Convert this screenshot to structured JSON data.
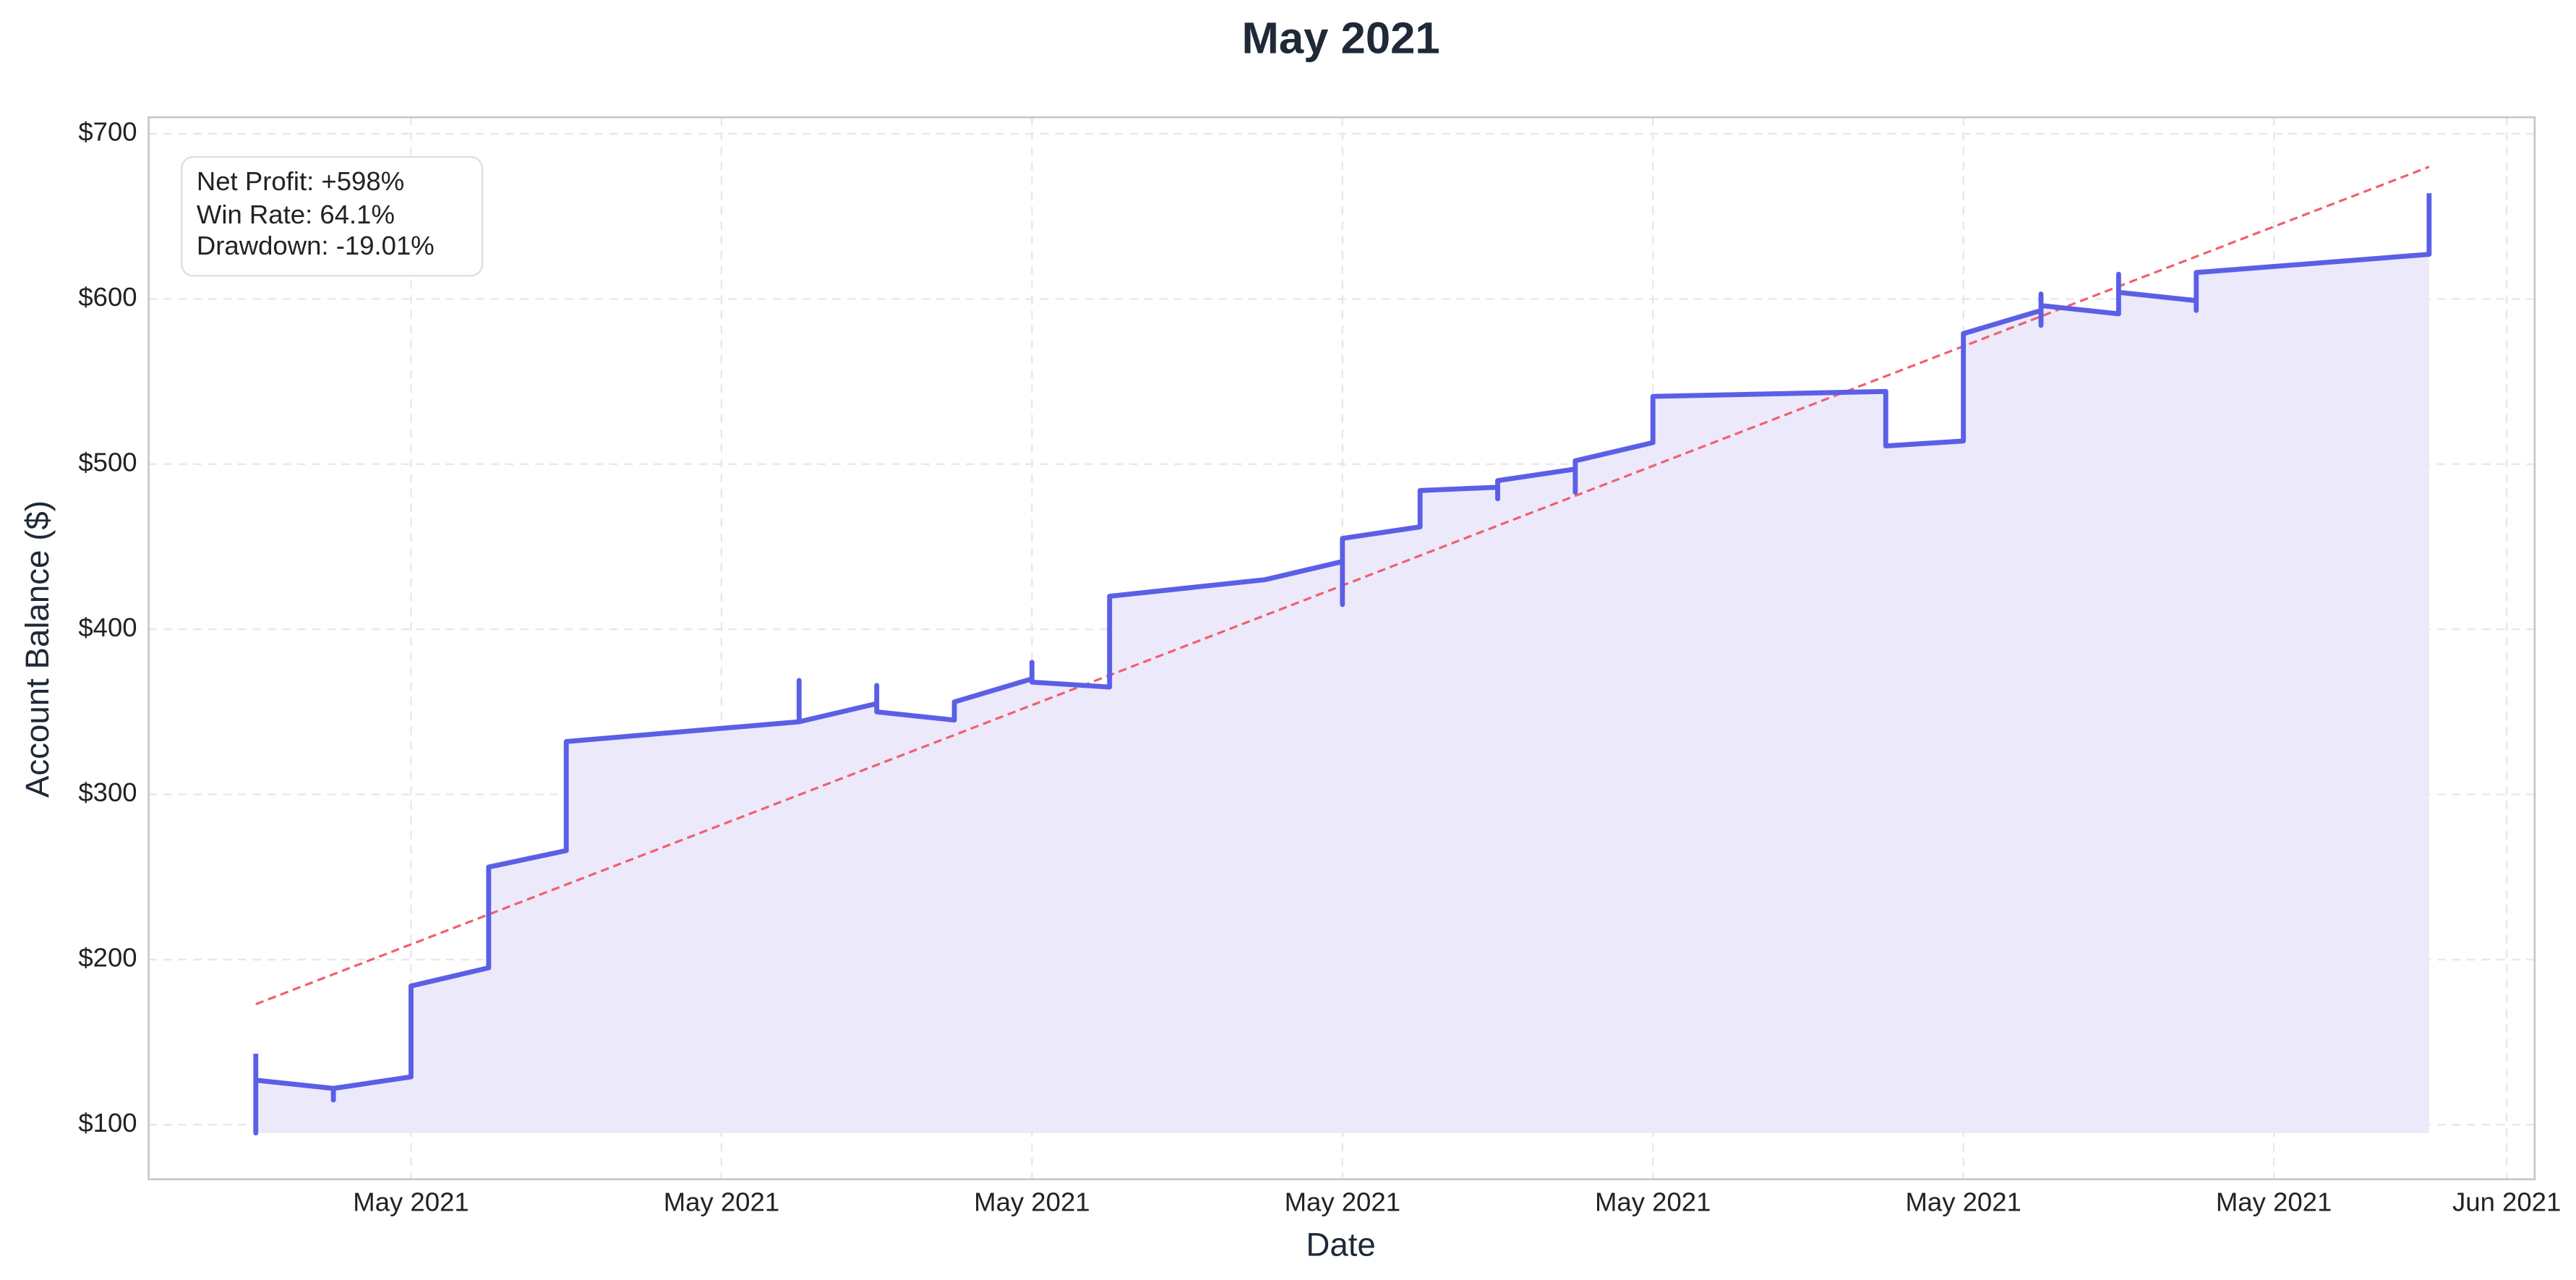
{
  "chart_data": {
    "type": "line",
    "title": "May 2021",
    "xlabel": "Date",
    "ylabel": "Account Balance ($)",
    "xlim": [
      1.62,
      32.36
    ],
    "ylim": [
      67,
      710
    ],
    "xticks": [
      {
        "value": 5,
        "label": "May 2021"
      },
      {
        "value": 9,
        "label": "May 2021"
      },
      {
        "value": 13,
        "label": "May 2021"
      },
      {
        "value": 17,
        "label": "May 2021"
      },
      {
        "value": 21,
        "label": "May 2021"
      },
      {
        "value": 25,
        "label": "May 2021"
      },
      {
        "value": 29,
        "label": "May 2021"
      },
      {
        "value": 32,
        "label": "Jun 2021"
      }
    ],
    "yticks": [
      {
        "value": 100,
        "label": "$100"
      },
      {
        "value": 200,
        "label": "$200"
      },
      {
        "value": 300,
        "label": "$300"
      },
      {
        "value": 400,
        "label": "$400"
      },
      {
        "value": 500,
        "label": "$500"
      },
      {
        "value": 600,
        "label": "$600"
      },
      {
        "value": 700,
        "label": "$700"
      }
    ],
    "grid": true,
    "fill_color": "#ece9fb",
    "color": "#5b5fe6",
    "x": [
      3,
      3,
      3,
      4,
      4,
      4,
      5,
      5,
      6,
      6,
      7,
      7,
      10,
      10,
      10,
      11,
      11,
      11,
      12,
      12,
      13,
      13,
      13,
      14,
      14,
      16,
      17,
      17,
      17,
      18,
      18,
      19,
      19,
      19,
      20,
      20,
      20,
      21,
      21,
      24,
      24,
      25,
      25,
      26,
      26,
      26,
      26,
      27,
      27,
      27,
      28,
      28,
      28,
      31,
      31
    ],
    "values": [
      143,
      95,
      127,
      122,
      115,
      122,
      129,
      184,
      195,
      256,
      266,
      332,
      344,
      369,
      344,
      355,
      366,
      350,
      345,
      356,
      370,
      380,
      368,
      365,
      420,
      430,
      441,
      415,
      455,
      462,
      484,
      486,
      479,
      490,
      497,
      483,
      502,
      513,
      541,
      544,
      511,
      514,
      579,
      593,
      603,
      584,
      596,
      591,
      615,
      604,
      599,
      593,
      616,
      627,
      664
    ],
    "trend": {
      "x": [
        3,
        31
      ],
      "values": [
        173,
        680
      ],
      "color": "#f0606e"
    },
    "annotations": [
      "Net Profit: +598%",
      "Win Rate: 64.1%",
      "Drawdown: -19.01%"
    ]
  }
}
